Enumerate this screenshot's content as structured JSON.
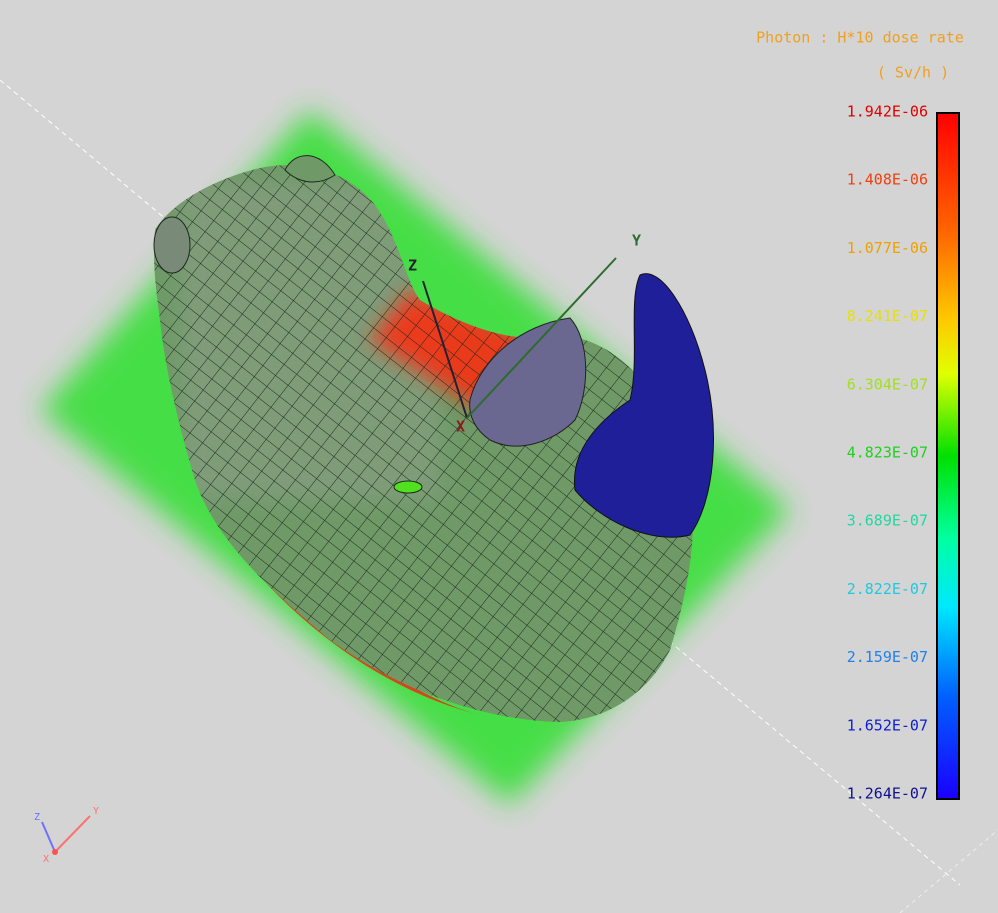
{
  "legend": {
    "title": "Photon : H*10 dose rate",
    "unit": "( Sv/h )",
    "labels": [
      "1.942E-06",
      "1.408E-06",
      "1.077E-06",
      "8.241E-07",
      "6.304E-07",
      "4.823E-07",
      "3.689E-07",
      "2.822E-07",
      "2.159E-07",
      "1.652E-07",
      "1.264E-07"
    ]
  },
  "axes": {
    "main": [
      "Z",
      "Y",
      "X"
    ],
    "triad": [
      "Z",
      "Y",
      "X"
    ]
  }
}
